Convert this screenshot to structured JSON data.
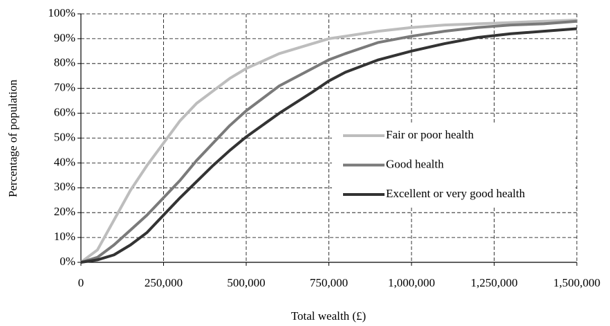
{
  "chart_data": {
    "type": "line",
    "x_label": "Total wealth (£)",
    "y_label": "Percentage of population",
    "x": [
      0,
      50000,
      100000,
      150000,
      200000,
      250000,
      300000,
      350000,
      400000,
      450000,
      500000,
      600000,
      700000,
      750000,
      800000,
      900000,
      1000000,
      1100000,
      1200000,
      1300000,
      1400000,
      1500000
    ],
    "series": [
      {
        "name": "Fair or poor health",
        "color": "#bdbdbd",
        "values": [
          0,
          5,
          17,
          29,
          39,
          48,
          57,
          64,
          69,
          74,
          78,
          84,
          88,
          90,
          91,
          93,
          94.5,
          95.5,
          96,
          96.5,
          97,
          97.5
        ]
      },
      {
        "name": "Good health",
        "color": "#7a7a7a",
        "values": [
          0,
          2,
          7,
          13,
          19,
          26,
          33,
          41,
          48,
          55,
          61,
          71,
          78,
          81.5,
          84,
          88.5,
          91,
          93,
          94.5,
          95.5,
          96,
          97
        ]
      },
      {
        "name": "Excellent or very good health",
        "color": "#333333",
        "values": [
          0,
          1,
          3,
          7,
          12,
          19,
          26,
          32.5,
          39,
          45,
          50.5,
          60,
          68.5,
          73,
          76.5,
          81.5,
          85,
          88,
          90.5,
          92,
          93,
          94
        ]
      }
    ],
    "xlim": [
      0,
      1500000
    ],
    "xticks": [
      0,
      {
        "value": 250000,
        "label": "250,000"
      },
      {
        "value": 500000,
        "label": "500,000"
      },
      {
        "value": 750000,
        "label": "750,000"
      },
      {
        "value": 1000000,
        "label": "1,000,000"
      },
      {
        "value": 1250000,
        "label": "1,250,000"
      },
      {
        "value": 1500000,
        "label": "1,500,000"
      }
    ],
    "ylim": [
      0,
      100
    ],
    "yticks": [
      {
        "value": 0,
        "label": "0%"
      },
      {
        "value": 10,
        "label": "10%"
      },
      {
        "value": 20,
        "label": "20%"
      },
      {
        "value": 30,
        "label": "30%"
      },
      {
        "value": 40,
        "label": "40%"
      },
      {
        "value": 50,
        "label": "50%"
      },
      {
        "value": 60,
        "label": "60%"
      },
      {
        "value": 70,
        "label": "70%"
      },
      {
        "value": 80,
        "label": "80%"
      },
      {
        "value": 90,
        "label": "90%"
      },
      {
        "value": 100,
        "label": "100%"
      }
    ],
    "grid": true,
    "legend": "right"
  }
}
